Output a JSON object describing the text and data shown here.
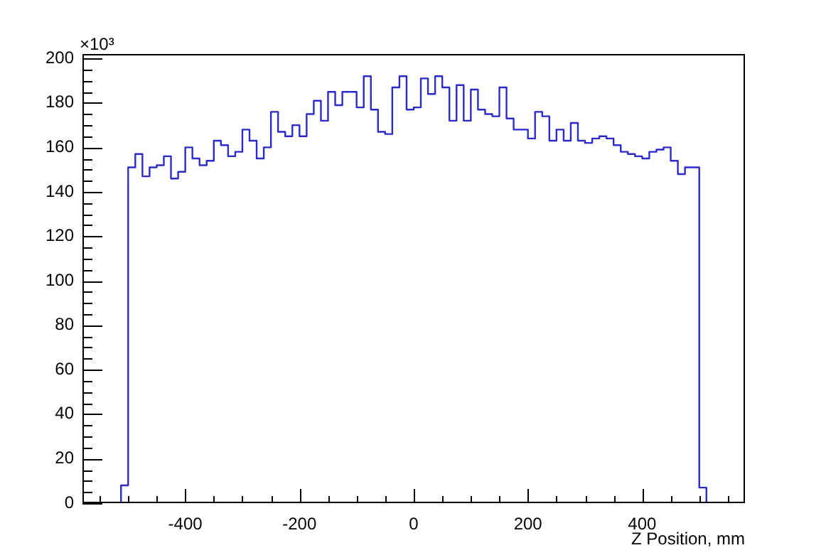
{
  "chart_data": {
    "type": "histogram",
    "xlabel": "Z Position, mm",
    "annotations": [
      "×10³"
    ],
    "bins": [
      -512.5,
      -500,
      -487.5,
      -475,
      -462.5,
      -450,
      -437.5,
      -425,
      -412.5,
      -400,
      -387.5,
      -375,
      -362.5,
      -350,
      -337.5,
      -325,
      -312.5,
      -300,
      -287.5,
      -275,
      -262.5,
      -250,
      -237.5,
      -225,
      -212.5,
      -200,
      -187.5,
      -175,
      -162.5,
      -150,
      -137.5,
      -125,
      -112.5,
      -100,
      -87.5,
      -75,
      -62.5,
      -50,
      -37.5,
      -25,
      -12.5,
      0,
      12.5,
      25,
      37.5,
      50,
      62.5,
      75,
      87.5,
      100,
      112.5,
      125,
      137.5,
      150,
      162.5,
      175,
      187.5,
      200,
      212.5,
      225,
      237.5,
      250,
      262.5,
      275,
      287.5,
      300,
      312.5,
      325,
      337.5,
      350,
      362.5,
      375,
      387.5,
      400,
      412.5,
      425,
      437.5,
      450,
      462.5,
      475,
      487.5,
      500,
      512.5
    ],
    "values": [
      8,
      151,
      157,
      147,
      151,
      152,
      156,
      146,
      149,
      160,
      155,
      152,
      154,
      163,
      161,
      156,
      158,
      168,
      163,
      155,
      160,
      176,
      167,
      165,
      170,
      165,
      175,
      181,
      172,
      185,
      179,
      185,
      185,
      178,
      192,
      177,
      167,
      166,
      187,
      192,
      177,
      178,
      191,
      184,
      192,
      187,
      172,
      188,
      172,
      186,
      177,
      175,
      174,
      187,
      173,
      168,
      168,
      164,
      176,
      174,
      163,
      168,
      163,
      171,
      163,
      162,
      164,
      165,
      164,
      161,
      158,
      157,
      156,
      155,
      158,
      159,
      160,
      154,
      148,
      151,
      151,
      7
    ],
    "color": "#2b2bcc",
    "xlim": [
      -580,
      580
    ],
    "ylim": [
      0,
      202
    ],
    "xticks": [
      {
        "value": -550,
        "label": null
      },
      {
        "value": -500,
        "label": null
      },
      {
        "value": -450,
        "label": null
      },
      -400,
      {
        "value": -350,
        "label": null
      },
      {
        "value": -300,
        "label": null
      },
      {
        "value": -250,
        "label": null
      },
      -200,
      {
        "value": -150,
        "label": null
      },
      {
        "value": -100,
        "label": null
      },
      {
        "value": -50,
        "label": null
      },
      0,
      {
        "value": 50,
        "label": null
      },
      {
        "value": 100,
        "label": null
      },
      {
        "value": 150,
        "label": null
      },
      200,
      {
        "value": 250,
        "label": null
      },
      {
        "value": 300,
        "label": null
      },
      {
        "value": 350,
        "label": null
      },
      400,
      {
        "value": 450,
        "label": null
      },
      {
        "value": 500,
        "label": null
      },
      {
        "value": 550,
        "label": null
      }
    ],
    "yticks": [
      0,
      {
        "value": 5,
        "label": null
      },
      {
        "value": 10,
        "label": null
      },
      {
        "value": 15,
        "label": null
      },
      20,
      {
        "value": 25,
        "label": null
      },
      {
        "value": 30,
        "label": null
      },
      {
        "value": 35,
        "label": null
      },
      40,
      {
        "value": 45,
        "label": null
      },
      {
        "value": 50,
        "label": null
      },
      {
        "value": 55,
        "label": null
      },
      60,
      {
        "value": 65,
        "label": null
      },
      {
        "value": 70,
        "label": null
      },
      {
        "value": 75,
        "label": null
      },
      80,
      {
        "value": 85,
        "label": null
      },
      {
        "value": 90,
        "label": null
      },
      {
        "value": 95,
        "label": null
      },
      100,
      {
        "value": 105,
        "label": null
      },
      {
        "value": 110,
        "label": null
      },
      {
        "value": 115,
        "label": null
      },
      120,
      {
        "value": 125,
        "label": null
      },
      {
        "value": 130,
        "label": null
      },
      {
        "value": 135,
        "label": null
      },
      140,
      {
        "value": 145,
        "label": null
      },
      {
        "value": 150,
        "label": null
      },
      {
        "value": 155,
        "label": null
      },
      160,
      {
        "value": 165,
        "label": null
      },
      {
        "value": 170,
        "label": null
      },
      {
        "value": 175,
        "label": null
      },
      180,
      {
        "value": 185,
        "label": null
      },
      {
        "value": 190,
        "label": null
      },
      {
        "value": 195,
        "label": null
      },
      200
    ],
    "grid": false
  }
}
